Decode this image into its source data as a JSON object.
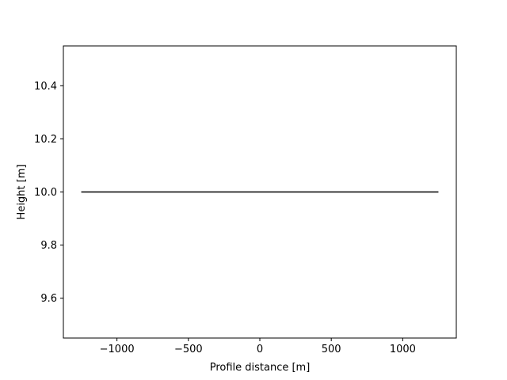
{
  "chart_data": {
    "type": "line",
    "title": "",
    "xlabel": "Profile distance [m]",
    "ylabel": "Height [m]",
    "xlim": [
      -1375,
      1375
    ],
    "ylim": [
      9.45,
      10.55
    ],
    "xticks": [
      -1000,
      -500,
      0,
      500,
      1000
    ],
    "xtick_labels": [
      "−1000",
      "−500",
      "0",
      "500",
      "1000"
    ],
    "yticks": [
      9.6,
      9.8,
      10.0,
      10.2,
      10.4
    ],
    "ytick_labels": [
      "9.6",
      "9.8",
      "10.0",
      "10.2",
      "10.4"
    ],
    "grid": false,
    "legend": "none",
    "series": [
      {
        "color": "#000000",
        "x": [
          -1250,
          1250
        ],
        "y": [
          10.0,
          10.0
        ]
      }
    ]
  }
}
